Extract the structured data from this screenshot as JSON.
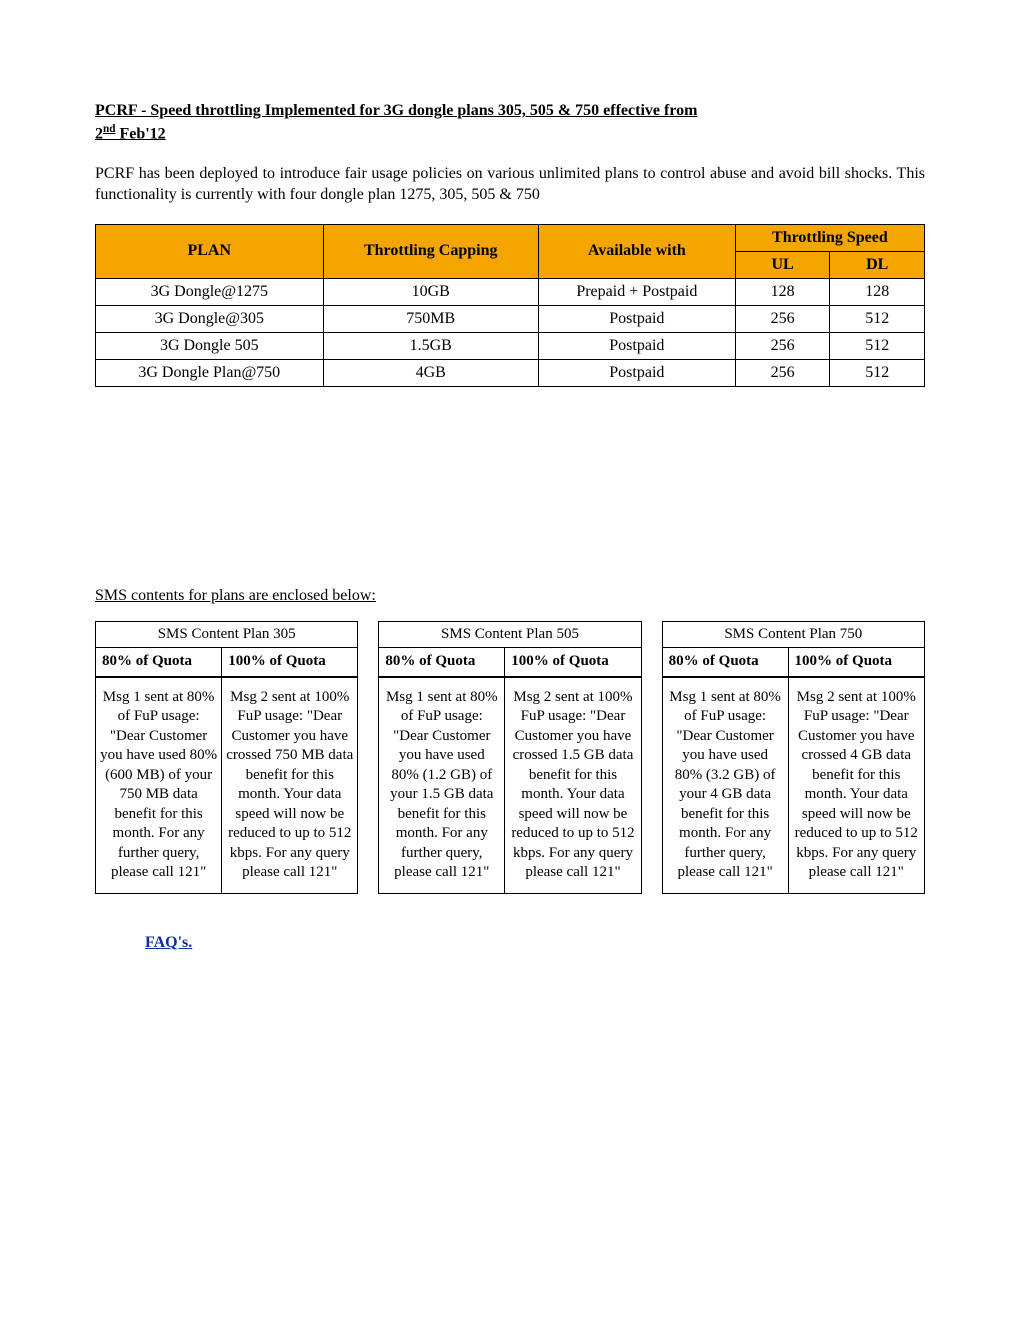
{
  "title_line1": "PCRF - Speed throttling Implemented for 3G dongle plans 305, 505 & 750 effective from ",
  "title_line2_prefix": "2",
  "title_line2_sup": "nd",
  "title_line2_suffix": " Feb'12",
  "intro_para": "PCRF has been deployed to introduce fair usage policies on various unlimited plans to control abuse and avoid bill shocks. This functionality is currently with four dongle plan 1275, 305, 505 & 750",
  "plan_table": {
    "header_bg": "#f5a500",
    "h_plan": "PLAN",
    "h_cap": "Throttling Capping",
    "h_avail": "Available with",
    "h_speed": "Throttling Speed",
    "h_ul": "UL",
    "h_dl": "DL",
    "rows": [
      {
        "plan": "3G Dongle@1275",
        "cap": "10GB",
        "avail": "Prepaid + Postpaid",
        "ul": "128",
        "dl": "128"
      },
      {
        "plan": "3G Dongle@305",
        "cap": "750MB",
        "avail": "Postpaid",
        "ul": "256",
        "dl": "512"
      },
      {
        "plan": "3G Dongle 505",
        "cap": "1.5GB",
        "avail": "Postpaid",
        "ul": "256",
        "dl": "512"
      },
      {
        "plan": "3G Dongle Plan@750",
        "cap": "4GB",
        "avail": "Postpaid",
        "ul": "256",
        "dl": "512"
      }
    ]
  },
  "sms_intro": "SMS contents for plans are enclosed below:",
  "sms_tables": [
    {
      "title": "SMS Content Plan 305",
      "col1": "80% of Quota",
      "col2": "100% of Quota",
      "msg1": "Msg 1 sent at 80% of FuP usage: \"Dear Customer you have used 80% (600 MB) of your 750 MB data benefit for this month. For any further query, please call 121\"",
      "msg2": "Msg 2 sent at 100% FuP usage: \"Dear Customer you have crossed 750 MB data benefit for this month. Your data speed will now be reduced to up to 512 kbps. For any query please call 121\""
    },
    {
      "title": "SMS Content Plan 505",
      "col1": "80% of Quota",
      "col2": "100% of Quota",
      "msg1": "Msg 1 sent at 80% of FuP usage: \"Dear Customer you have used 80% (1.2 GB) of your 1.5 GB data benefit for this month. For any further query, please call 121\"",
      "msg2": "Msg 2 sent at 100% FuP usage: \"Dear Customer you have crossed 1.5 GB data benefit for this month. Your data speed will now be reduced to up to 512 kbps. For any query please call 121\""
    },
    {
      "title": "SMS Content Plan 750",
      "col1": "80% of Quota",
      "col2": "100% of Quota",
      "msg1": "Msg 1 sent at 80% of FuP usage: \"Dear Customer you have used 80% (3.2 GB) of your 4 GB data benefit for this month. For any further query, please call 121\"",
      "msg2": "Msg 2 sent at 100% FuP usage: \"Dear Customer you have crossed 4 GB data benefit for this month. Your data speed will now be reduced to up to 512 kbps. For any query please call 121\""
    }
  ],
  "faq_label": "FAQ's."
}
